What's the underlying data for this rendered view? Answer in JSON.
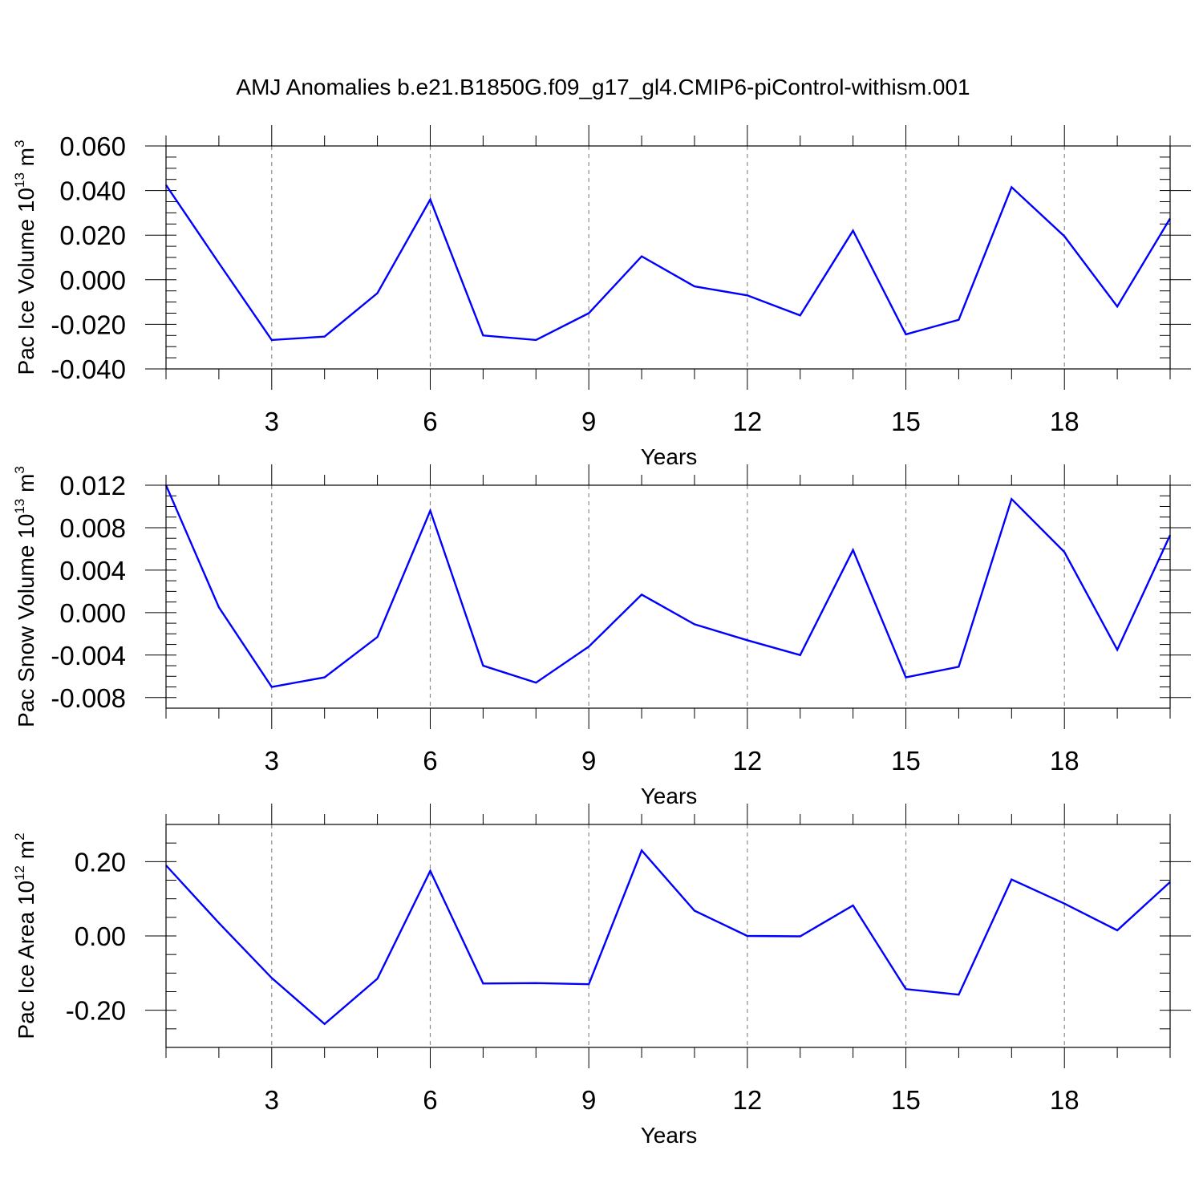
{
  "figure": {
    "title": "AMJ Anomalies b.e21.B1850G.f09_g17_gl4.CMIP6-piControl-withism.001"
  },
  "colors": {
    "series": "#0000ff",
    "axes": "#000000",
    "grid": "#8c8c8c"
  },
  "chart_data": [
    {
      "type": "line",
      "ylabel": {
        "text": "Pac Ice Volume 10",
        "exp": "13",
        "unit": " m",
        "unit_exp": "3"
      },
      "xlabel": "Years",
      "x_ticks": [
        3,
        6,
        9,
        12,
        15,
        18
      ],
      "xlim": [
        1,
        20
      ],
      "ylim": [
        -0.04,
        0.06
      ],
      "y_ticks": [
        -0.04,
        -0.02,
        0.0,
        0.02,
        0.04,
        0.06
      ],
      "y_tick_labels": [
        "-0.040",
        "-0.020",
        "0.000",
        "0.020",
        "0.040",
        "0.060"
      ],
      "y_minor_step": 0.005,
      "x_grid": "dashed at major ticks",
      "x": [
        1,
        2,
        3,
        4,
        5,
        6,
        7,
        8,
        9,
        10,
        11,
        12,
        13,
        14,
        15,
        16,
        17,
        18,
        19,
        20
      ],
      "values": [
        0.0425,
        0.0075,
        -0.027,
        -0.0255,
        -0.006,
        0.036,
        -0.025,
        -0.027,
        -0.015,
        0.0105,
        -0.003,
        -0.007,
        -0.016,
        0.022,
        -0.0245,
        -0.018,
        0.0415,
        0.0195,
        -0.012,
        0.0275
      ]
    },
    {
      "type": "line",
      "ylabel": {
        "text": "Pac Snow Volume 10",
        "exp": "13",
        "unit": " m",
        "unit_exp": "3"
      },
      "xlabel": "Years",
      "x_ticks": [
        3,
        6,
        9,
        12,
        15,
        18
      ],
      "xlim": [
        1,
        20
      ],
      "ylim": [
        -0.009,
        0.012
      ],
      "y_ticks": [
        -0.008,
        -0.004,
        0.0,
        0.004,
        0.008,
        0.012
      ],
      "y_tick_labels": [
        "-0.008",
        "-0.004",
        "0.000",
        "0.004",
        "0.008",
        "0.012"
      ],
      "y_minor_step": 0.001,
      "x_grid": "dashed at major ticks",
      "x": [
        1,
        2,
        3,
        4,
        5,
        6,
        7,
        8,
        9,
        10,
        11,
        12,
        13,
        14,
        15,
        16,
        17,
        18,
        19,
        20
      ],
      "values": [
        0.012,
        0.0005,
        -0.007,
        -0.0061,
        -0.0023,
        0.0096,
        -0.005,
        -0.0066,
        -0.0032,
        0.0017,
        -0.0011,
        -0.0026,
        -0.004,
        0.0059,
        -0.0061,
        -0.0051,
        0.0107,
        0.0057,
        -0.0035,
        0.0073
      ]
    },
    {
      "type": "line",
      "ylabel": {
        "text": "Pac Ice Area 10",
        "exp": "12",
        "unit": " m",
        "unit_exp": "2"
      },
      "xlabel": "Years",
      "x_ticks": [
        3,
        6,
        9,
        12,
        15,
        18
      ],
      "xlim": [
        1,
        20
      ],
      "ylim": [
        -0.3,
        0.3
      ],
      "y_ticks": [
        -0.2,
        0.0,
        0.2
      ],
      "y_tick_labels": [
        "-0.20",
        "0.00",
        "0.20"
      ],
      "y_minor_step": 0.05,
      "x_grid": "dashed at major ticks",
      "x": [
        1,
        2,
        3,
        4,
        5,
        6,
        7,
        8,
        9,
        10,
        11,
        12,
        13,
        14,
        15,
        16,
        17,
        18,
        19,
        20
      ],
      "values": [
        0.19,
        0.035,
        -0.113,
        -0.237,
        -0.115,
        0.175,
        -0.128,
        -0.127,
        -0.13,
        0.23,
        0.068,
        0.0,
        -0.001,
        0.082,
        -0.143,
        -0.158,
        0.152,
        0.087,
        0.015,
        0.145
      ]
    }
  ]
}
